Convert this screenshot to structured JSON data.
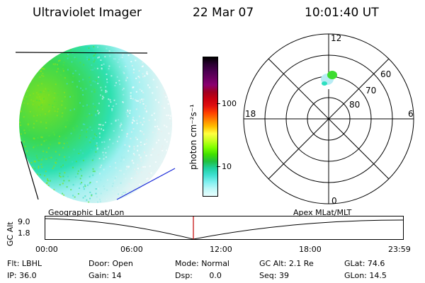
{
  "header": {
    "instrument": "Ultraviolet Imager",
    "date": "22 Mar 07",
    "time": "10:01:40 UT"
  },
  "colorbar": {
    "unit_label": "photon cm⁻²s⁻¹",
    "ticks": [
      "100",
      "10"
    ],
    "colors": [
      "#000000",
      "#2a0030",
      "#4b0050",
      "#6a0060",
      "#8a0070",
      "#a00020",
      "#c80010",
      "#e01010",
      "#ff4000",
      "#ff8000",
      "#ffc000",
      "#ffff40",
      "#c8ff20",
      "#80ff00",
      "#40e000",
      "#20c040",
      "#20d0a0",
      "#40e0d0",
      "#80f0f0",
      "#c0f8f8",
      "#e8ffff"
    ]
  },
  "polar_plot": {
    "mlt_labels": {
      "top": "12",
      "left": "18",
      "right": "6",
      "bottom": "0"
    },
    "lat_labels": [
      "60",
      "70",
      "80"
    ]
  },
  "timeline": {
    "y_axis_label": "GC Alt",
    "y_ticks": [
      "9.0",
      "1.8"
    ],
    "left_label": "Geographic Lat/Lon",
    "right_label": "Apex MLat/MLT",
    "x_ticks": [
      "00:00",
      "06:00",
      "12:00",
      "18:00",
      "23:59"
    ],
    "current_marker_time": "10:01"
  },
  "status": {
    "row1": [
      {
        "label": "Flt:",
        "value": "LBHL"
      },
      {
        "label": "Door:",
        "value": "Open"
      },
      {
        "label": "Mode:",
        "value": "Normal"
      },
      {
        "label": "GC Alt:",
        "value": "2.1 Re"
      },
      {
        "label": "GLat:",
        "value": "74.6"
      }
    ],
    "row2": [
      {
        "label": "IP:",
        "value": "36.0"
      },
      {
        "label": "Gain:",
        "value": "14"
      },
      {
        "label": "Dsp:",
        "value": "0.0"
      },
      {
        "label": "Seq:",
        "value": "39"
      },
      {
        "label": "GLon:",
        "value": "14.5"
      }
    ]
  }
}
